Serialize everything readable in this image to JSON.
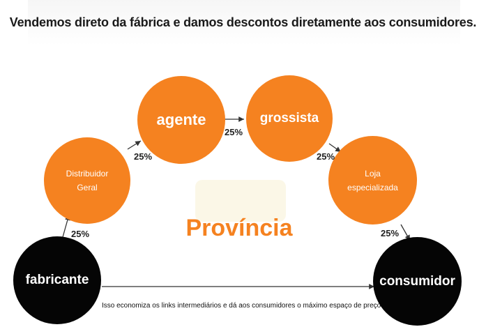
{
  "headline": "Vendemos direto da fábrica e damos descontos diretamente aos consumidores.",
  "center_label": "Província",
  "footnote": "Isso economiza os links intermediários e dá aos consumidores o máximo espaço de preço.",
  "nodes": {
    "fabricante": "fabricante",
    "distribuidor": "Distribuidor Geral",
    "agente": "agente",
    "grossista": "grossista",
    "loja": "Loja especializada",
    "consumidor": "consumidor"
  },
  "percentages": {
    "fab_to_dist": "25%",
    "dist_to_agente": "25%",
    "agente_to_grossista": "25%",
    "grossista_to_loja": "25%",
    "loja_to_consumidor": "25%"
  },
  "colors": {
    "accent": "#f58220",
    "dark": "#050505"
  }
}
